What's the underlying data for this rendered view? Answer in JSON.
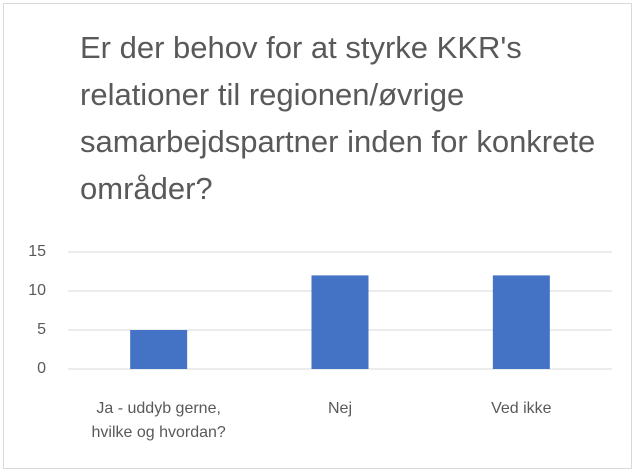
{
  "chart_data": {
    "type": "bar",
    "title": "Er der behov for at styrke KKR's relationer til regionen/øvrige samarbejdspartner inden for konkrete områder?",
    "categories": [
      "Ja - uddyb gerne, hvilke og hvordan?",
      "Nej",
      "Ved ikke"
    ],
    "values": [
      5,
      12,
      12
    ],
    "color": "#4472c4",
    "ylim": [
      0,
      15
    ],
    "yticks": [
      0,
      5,
      10,
      15
    ],
    "grid": true
  }
}
